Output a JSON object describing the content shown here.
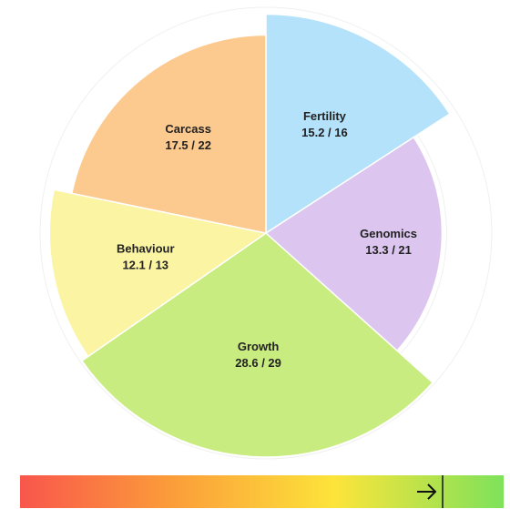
{
  "chart_data": {
    "type": "polar-area",
    "categories": [
      "Fertility",
      "Genomics",
      "Growth",
      "Behaviour",
      "Carcass"
    ],
    "values": [
      15.2,
      13.3,
      28.6,
      12.1,
      17.5
    ],
    "max": [
      16,
      21,
      29,
      13,
      22
    ],
    "value_labels": [
      "15.2 / 16",
      "13.3 / 21",
      "28.6 / 29",
      "12.1 / 13",
      "17.5 / 22"
    ],
    "colors": [
      "#b5e2fb",
      "#dcc6ef",
      "#c8ec7f",
      "#fbf4a2",
      "#fcc98e"
    ]
  }
}
